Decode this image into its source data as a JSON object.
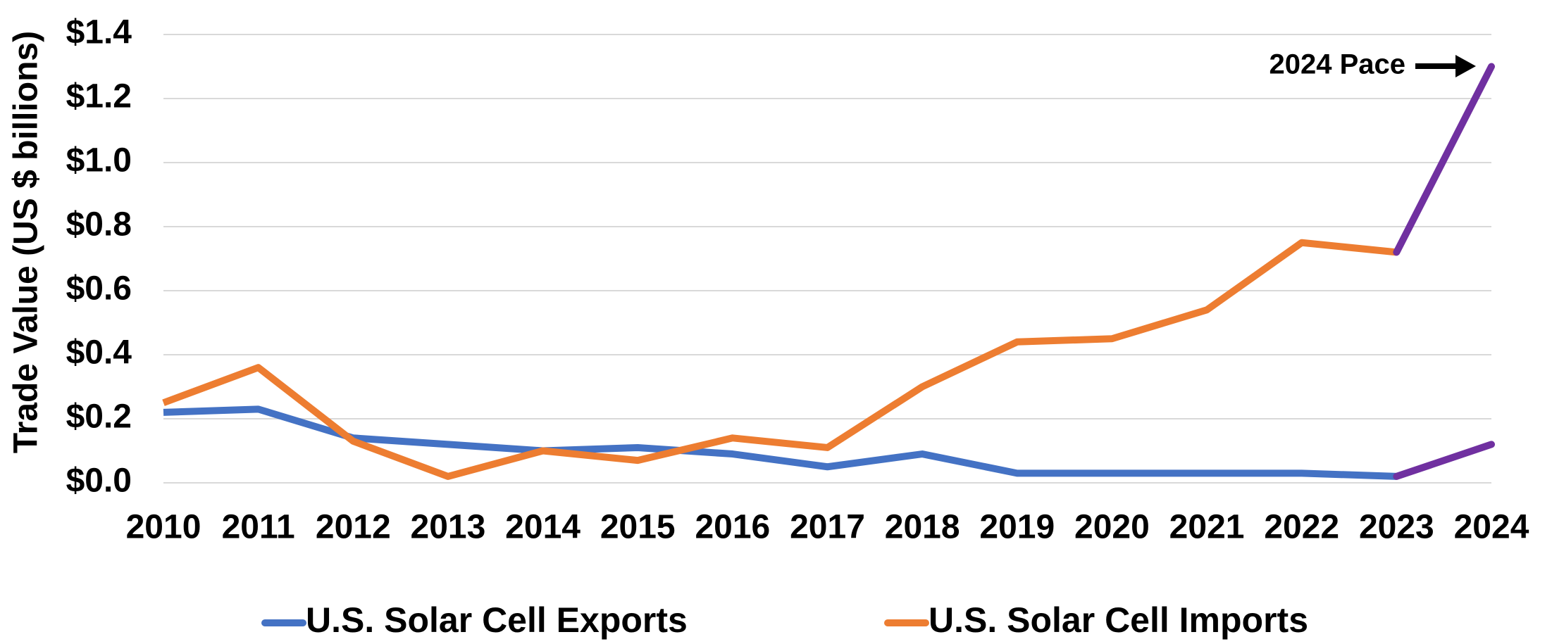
{
  "chart_data": {
    "type": "line",
    "ylabel": "Trade Value (US $ billions)",
    "categories": [
      "2010",
      "2011",
      "2012",
      "2013",
      "2014",
      "2015",
      "2016",
      "2017",
      "2018",
      "2019",
      "2020",
      "2021",
      "2022",
      "2023",
      "2024"
    ],
    "series": [
      {
        "name": "U.S. Solar Cell Exports",
        "color": "#4472c4",
        "values": [
          0.22,
          0.23,
          0.14,
          0.12,
          0.1,
          0.11,
          0.09,
          0.05,
          0.09,
          0.03,
          0.03,
          0.03,
          0.03,
          0.02,
          0.12
        ]
      },
      {
        "name": "U.S. Solar Cell Imports",
        "color": "#ed7d31",
        "values": [
          0.25,
          0.36,
          0.13,
          0.02,
          0.1,
          0.07,
          0.14,
          0.11,
          0.3,
          0.44,
          0.45,
          0.54,
          0.75,
          0.72,
          1.3
        ]
      }
    ],
    "pace_color": "#7030a0",
    "annotation": "2024 Pace",
    "ylim": [
      0,
      1.4
    ],
    "yticks": [
      {
        "value": 0,
        "label": "$0.0"
      },
      {
        "value": 0.2,
        "label": "$0.2"
      },
      {
        "value": 0.4,
        "label": "$0.4"
      },
      {
        "value": 0.6,
        "label": "$0.6"
      },
      {
        "value": 0.8,
        "label": "$0.8"
      },
      {
        "value": 1.0,
        "label": "$1.0"
      },
      {
        "value": 1.2,
        "label": "$1.2"
      },
      {
        "value": 1.4,
        "label": "$1.4"
      }
    ],
    "grid": true,
    "legend": "bottom"
  }
}
